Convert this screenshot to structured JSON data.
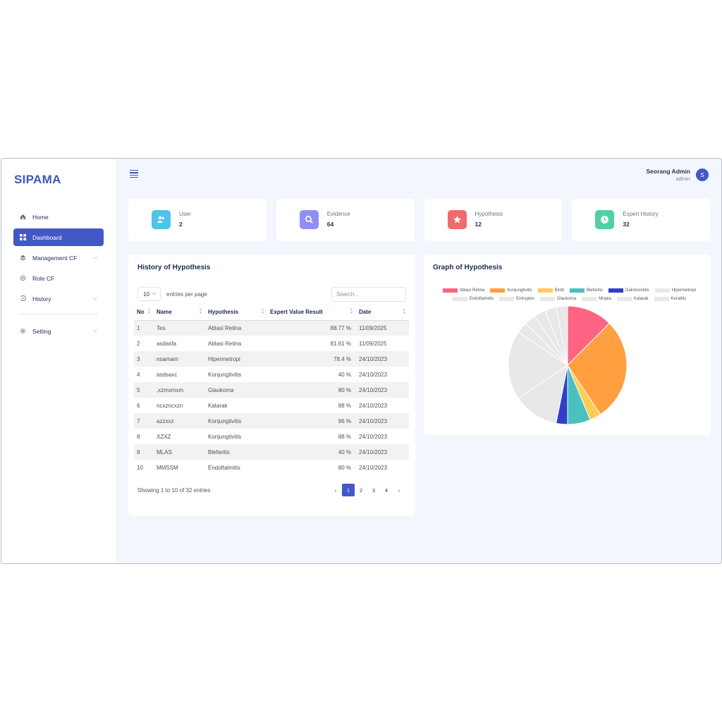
{
  "brand": "SIPAMA",
  "nav": [
    {
      "label": "Home",
      "icon": "home-icon",
      "active": false,
      "chevron": false
    },
    {
      "label": "Dashboard",
      "icon": "grid-icon",
      "active": true,
      "chevron": false
    },
    {
      "label": "Management CF",
      "icon": "layers-icon",
      "active": false,
      "chevron": true
    },
    {
      "label": "Role CF",
      "icon": "gear-icon",
      "active": false,
      "chevron": false
    },
    {
      "label": "History",
      "icon": "history-icon",
      "active": false,
      "chevron": true
    },
    {
      "label": "Setting",
      "icon": "settings-icon",
      "active": false,
      "chevron": true
    }
  ],
  "header": {
    "user_name": "Seorang Admin",
    "user_role": "admin",
    "avatar_initial": "S"
  },
  "stats": [
    {
      "label": "User",
      "value": "2",
      "icon": "users-icon",
      "color": "#4fc3e8"
    },
    {
      "label": "Evidence",
      "value": "64",
      "icon": "search-icon",
      "color": "#8f8ef8"
    },
    {
      "label": "Hypothesis",
      "value": "12",
      "icon": "star-icon",
      "color": "#f06b6b"
    },
    {
      "label": "Expert History",
      "value": "32",
      "icon": "clock-icon",
      "color": "#4fd1a1"
    }
  ],
  "history": {
    "title": "History of Hypothesis",
    "per_page": "10",
    "per_page_label": "entries per page",
    "search_placeholder": "Search...",
    "columns": [
      "No",
      "Name",
      "Hypothesis",
      "Expert Value Result",
      "Date"
    ],
    "rows": [
      [
        "1",
        "Tes",
        "Ablasi Retina",
        "88.77 %",
        "11/09/2025"
      ],
      [
        "2",
        "asdasfa",
        "Ablasi Retina",
        "81.61 %",
        "11/09/2025"
      ],
      [
        "3",
        "nsamam",
        "Hipermetropi",
        "78.4 %",
        "24/10/2023"
      ],
      [
        "4",
        "asdsaxc",
        "Konjungtivitis",
        "40 %",
        "24/10/2023"
      ],
      [
        "5",
        ",xzmxmxm",
        "Glaukoma",
        "80 %",
        "24/10/2023"
      ],
      [
        "6",
        "ncxzncxzn",
        "Katarak",
        "88 %",
        "24/10/2023"
      ],
      [
        "7",
        "azzxxz",
        "Konjungtivitis",
        "96 %",
        "24/10/2023"
      ],
      [
        "8",
        "XZXZ",
        "Konjungtivitis",
        "88 %",
        "24/10/2023"
      ],
      [
        "9",
        "MLAS",
        "Blefaritis",
        "40 %",
        "24/10/2023"
      ],
      [
        "10",
        "MMSSM",
        "Endoftalmitis",
        "80 %",
        "24/10/2023"
      ]
    ],
    "footer": "Showing 1 to 10 of 32 entries",
    "pages": [
      "‹",
      "1",
      "2",
      "3",
      "4",
      "›"
    ],
    "active_page": "1"
  },
  "chart_data": {
    "type": "pie",
    "title": "Graph of Hypothesis",
    "categories": [
      "Ablasi Retina",
      "Konjungtivitis",
      "Bintit",
      "Blefaritis",
      "Dakriosistitis",
      "Hipermetropi",
      "Endoftalmitis",
      "Entropion",
      "Glaukoma",
      "Miopia",
      "Katarak",
      "Keratitis"
    ],
    "values": [
      4,
      9,
      1,
      2,
      1,
      4,
      6,
      1,
      1,
      1,
      1,
      1
    ],
    "colors": [
      "#ff6384",
      "#ff9f40",
      "#ffcd56",
      "#4bc0c0",
      "#2f40c8",
      "#e8e8e8",
      "#e8e8e8",
      "#e8e8e8",
      "#e8e8e8",
      "#e8e8e8",
      "#e8e8e8",
      "#e8e8e8"
    ],
    "legend": "top"
  }
}
